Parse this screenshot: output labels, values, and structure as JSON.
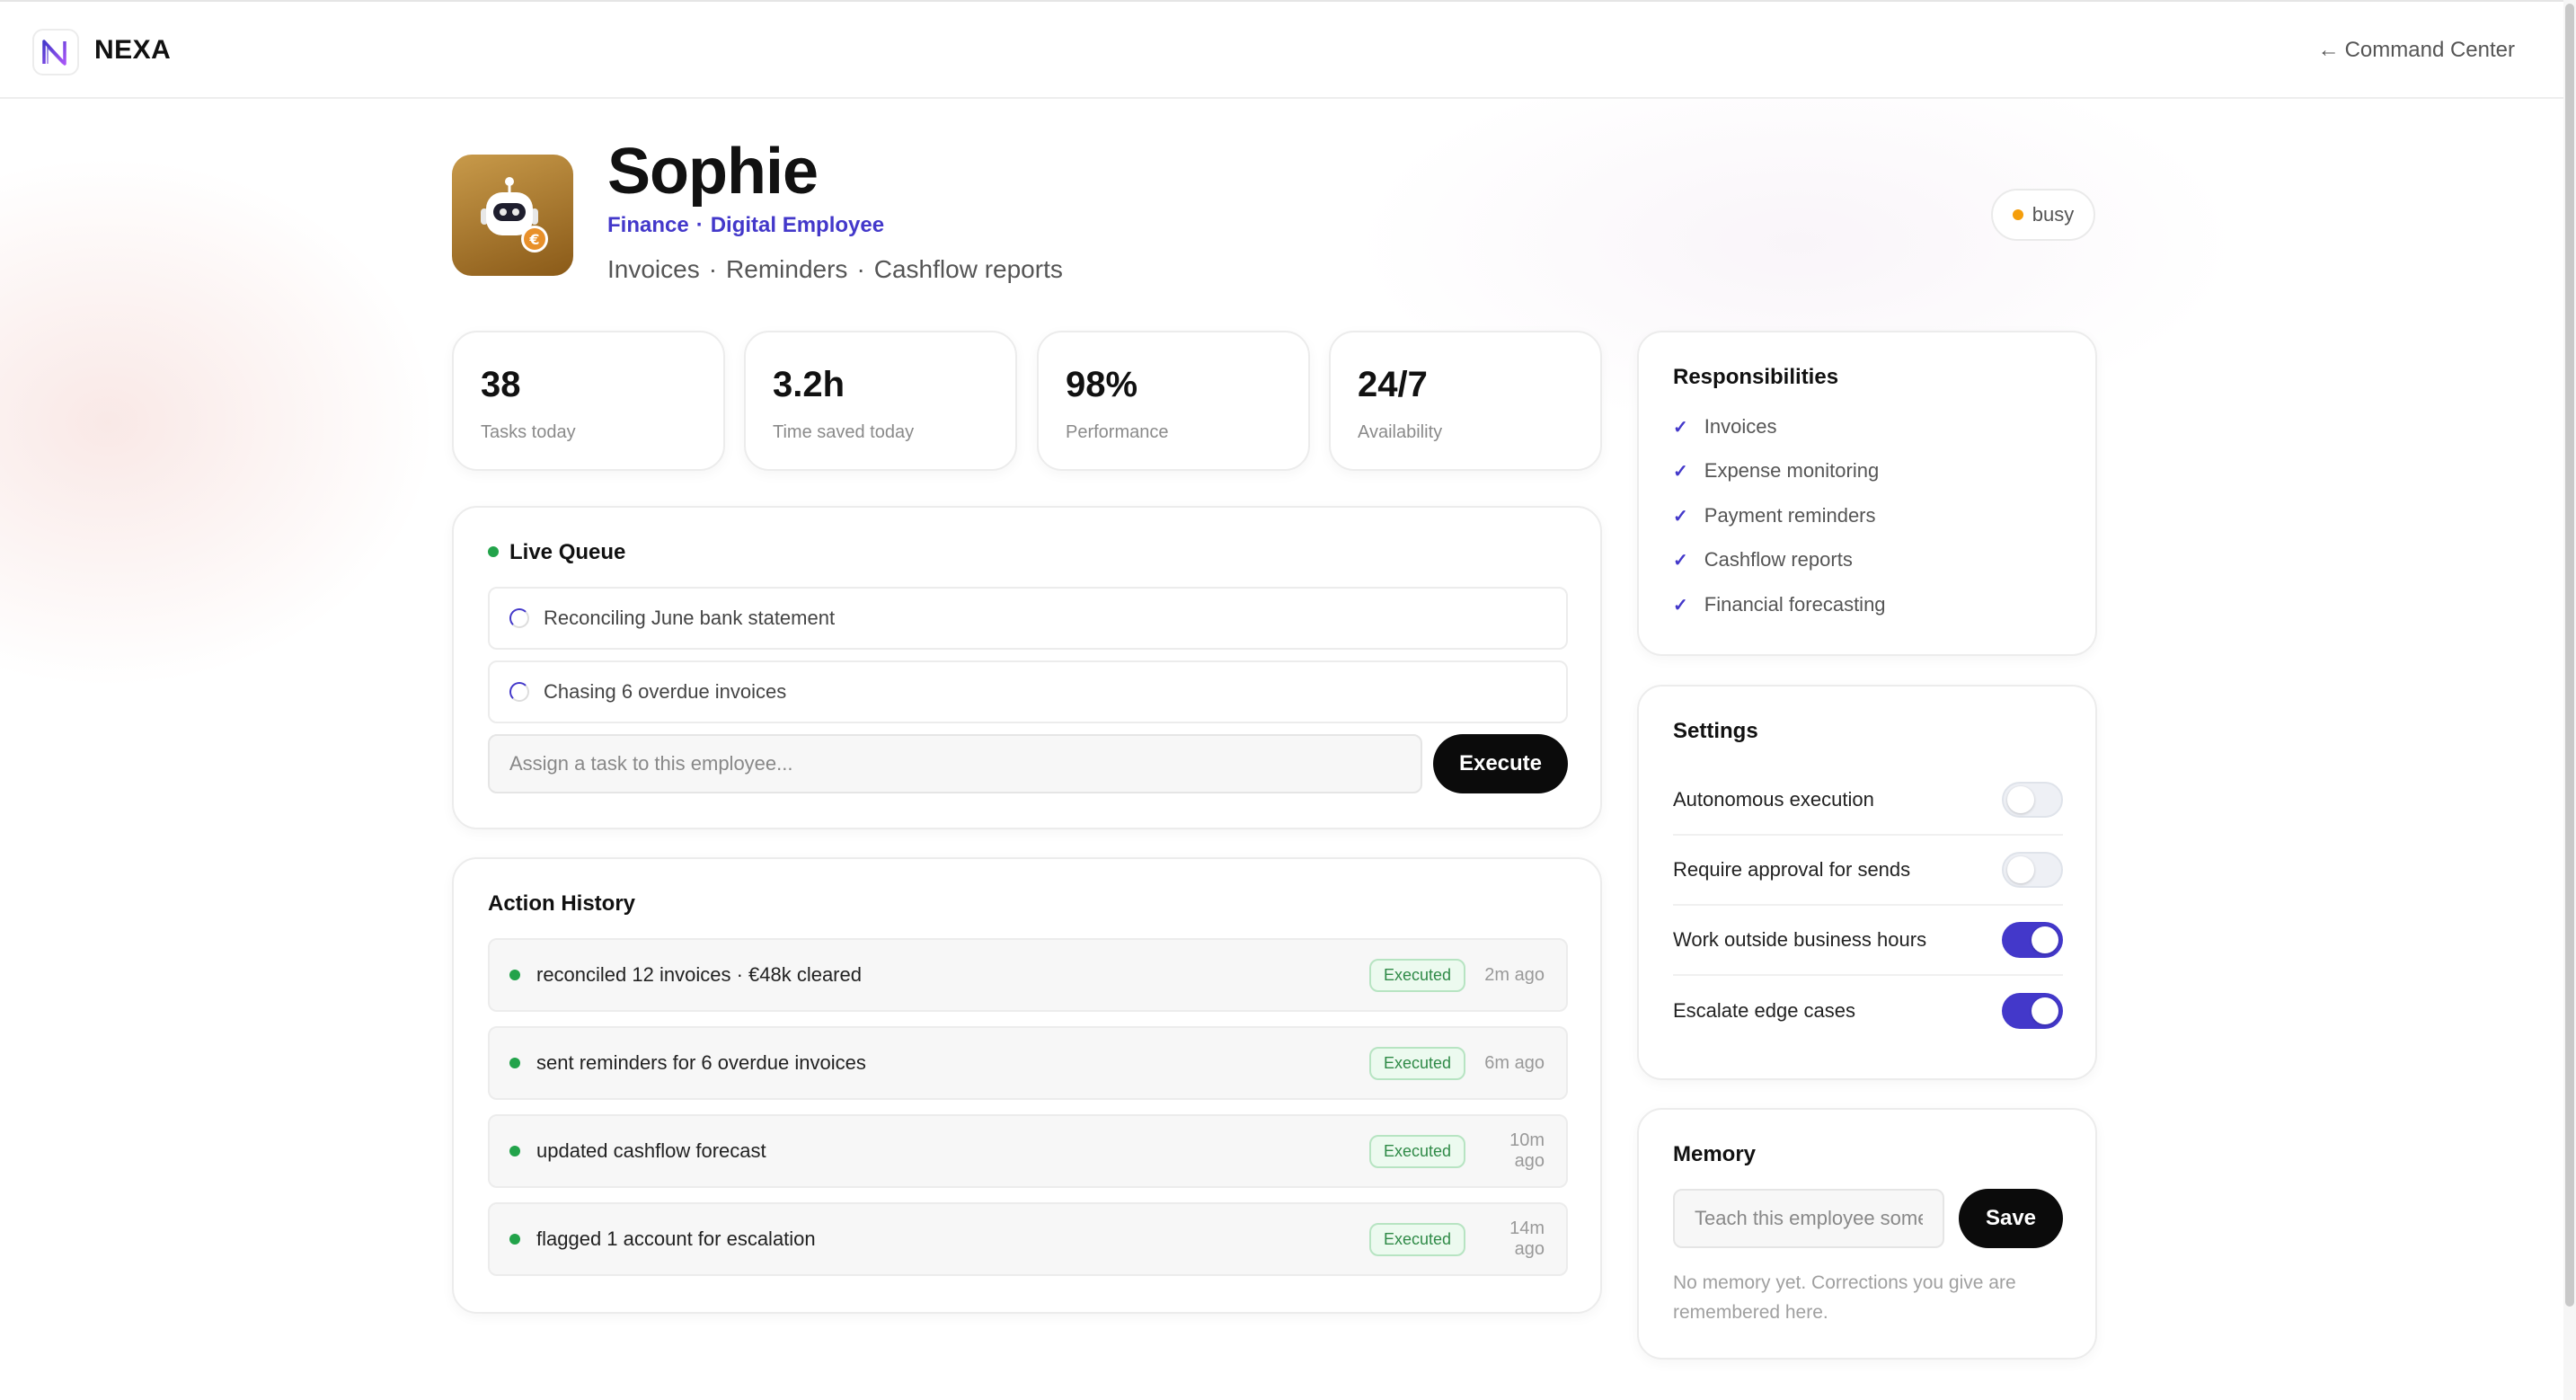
{
  "header": {
    "brand": "NEXA",
    "back_link": "Command Center"
  },
  "employee": {
    "name": "Sophie",
    "department": "Finance",
    "type": "Digital Employee",
    "skills": [
      "Invoices",
      "Reminders",
      "Cashflow reports"
    ],
    "status": "busy"
  },
  "stats": [
    {
      "value": "38",
      "label": "Tasks today"
    },
    {
      "value": "3.2h",
      "label": "Time saved today"
    },
    {
      "value": "98%",
      "label": "Performance"
    },
    {
      "value": "24/7",
      "label": "Availability"
    }
  ],
  "live_queue": {
    "title": "Live Queue",
    "items": [
      "Reconciling June bank statement",
      "Chasing 6 overdue invoices"
    ],
    "input_placeholder": "Assign a task to this employee...",
    "execute_label": "Execute"
  },
  "action_history": {
    "title": "Action History",
    "items": [
      {
        "text": "reconciled 12 invoices · €48k cleared",
        "status": "Executed",
        "time": "2m ago"
      },
      {
        "text": "sent reminders for 6 overdue invoices",
        "status": "Executed",
        "time": "6m ago"
      },
      {
        "text": "updated cashflow forecast",
        "status": "Executed",
        "time": "10m ago"
      },
      {
        "text": "flagged 1 account for escalation",
        "status": "Executed",
        "time": "14m ago"
      }
    ]
  },
  "responsibilities": {
    "title": "Responsibilities",
    "items": [
      "Invoices",
      "Expense monitoring",
      "Payment reminders",
      "Cashflow reports",
      "Financial forecasting"
    ]
  },
  "settings": {
    "title": "Settings",
    "items": [
      {
        "label": "Autonomous execution",
        "enabled": false
      },
      {
        "label": "Require approval for sends",
        "enabled": false
      },
      {
        "label": "Work outside business hours",
        "enabled": true
      },
      {
        "label": "Escalate edge cases",
        "enabled": true
      }
    ]
  },
  "memory": {
    "title": "Memory",
    "input_placeholder": "Teach this employee something...",
    "save_label": "Save",
    "note": "No memory yet. Corrections you give are remembered here."
  },
  "colors": {
    "accent": "#4338ca",
    "success": "#22a34a",
    "busy": "#f59e0b",
    "avatar_bg": "#b07d2c"
  }
}
